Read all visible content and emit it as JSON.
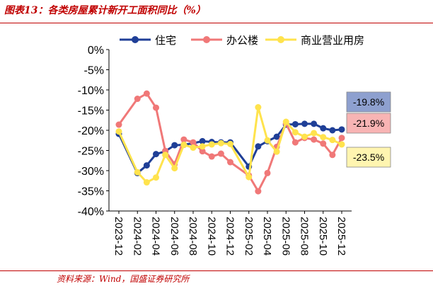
{
  "figure": {
    "title": "图表13：各类房屋累计新开工面积同比（%）",
    "source": "资料来源：Wind，国盛证券研究所"
  },
  "colors": {
    "accent": "#c00000",
    "series_residential": "#1f3f97",
    "series_office": "#f07878",
    "series_commercial": "#ffe34d"
  },
  "chart_data": {
    "type": "line",
    "y_axis": {
      "ylim": [
        -40,
        0
      ],
      "ticks": [
        "0%",
        "-5%",
        "-10%",
        "-15%",
        "-20%",
        "-25%",
        "-30%",
        "-35%",
        "-40%"
      ]
    },
    "x_axis": {
      "tick_labels": [
        "2023-12",
        "2024-02",
        "2024-04",
        "2024-06",
        "2024-08",
        "2024-10",
        "2024-12",
        "2025-02",
        "2025-04",
        "2025-06",
        "2025-08",
        "2025-10",
        "2025-12"
      ]
    },
    "grid": false,
    "legend_position": "top",
    "x": [
      "2023-12",
      "2024-02",
      "2024-03",
      "2024-04",
      "2024-05",
      "2024-06",
      "2024-07",
      "2024-08",
      "2024-09",
      "2024-10",
      "2024-11",
      "2024-12",
      "2025-02",
      "2025-03",
      "2025-04",
      "2025-05",
      "2025-06",
      "2025-07",
      "2025-08",
      "2025-09",
      "2025-10",
      "2025-11",
      "2025-12"
    ],
    "series": [
      {
        "name": "住宅",
        "color": "#1f3f97",
        "marker": "circle",
        "values": [
          -20.9,
          -30.6,
          -28.7,
          -25.9,
          -25.2,
          -23.7,
          -23.6,
          -23.2,
          -22.7,
          -22.9,
          -23.0,
          -23.0,
          -29.0,
          -24.0,
          -22.7,
          -21.6,
          -18.6,
          -18.5,
          -18.4,
          -18.4,
          -19.5,
          -20.0,
          -19.8
        ]
      },
      {
        "name": "办公楼",
        "color": "#f07878",
        "marker": "circle",
        "values": [
          -18.6,
          -12.2,
          -10.9,
          -14.4,
          -25.1,
          -28.4,
          -22.3,
          -23.0,
          -25.2,
          -26.5,
          -25.8,
          -27.9,
          -31.2,
          -35.1,
          -30.6,
          -24.1,
          -18.3,
          -23.0,
          -21.9,
          -22.3,
          -23.3,
          -26.1,
          -21.9
        ]
      },
      {
        "name": "商业营业用房",
        "color": "#ffe34d",
        "marker": "circle",
        "values": [
          -20.3,
          -30.4,
          -32.9,
          -31.7,
          -26.1,
          -29.4,
          -23.6,
          -24.3,
          -24.0,
          -23.5,
          -23.2,
          -23.4,
          -31.6,
          -14.3,
          -22.5,
          -25.3,
          -17.9,
          -20.5,
          -21.6,
          -20.7,
          -21.7,
          -22.4,
          -23.5
        ]
      }
    ],
    "annotations": [
      {
        "series": "住宅",
        "text": "-19.8%",
        "bg": "#8ea0cf"
      },
      {
        "series": "办公楼",
        "text": "-21.9%",
        "bg": "#f8b4b4"
      },
      {
        "series": "商业营业用房",
        "text": "-23.5%",
        "bg": "#fff5b0"
      }
    ]
  }
}
